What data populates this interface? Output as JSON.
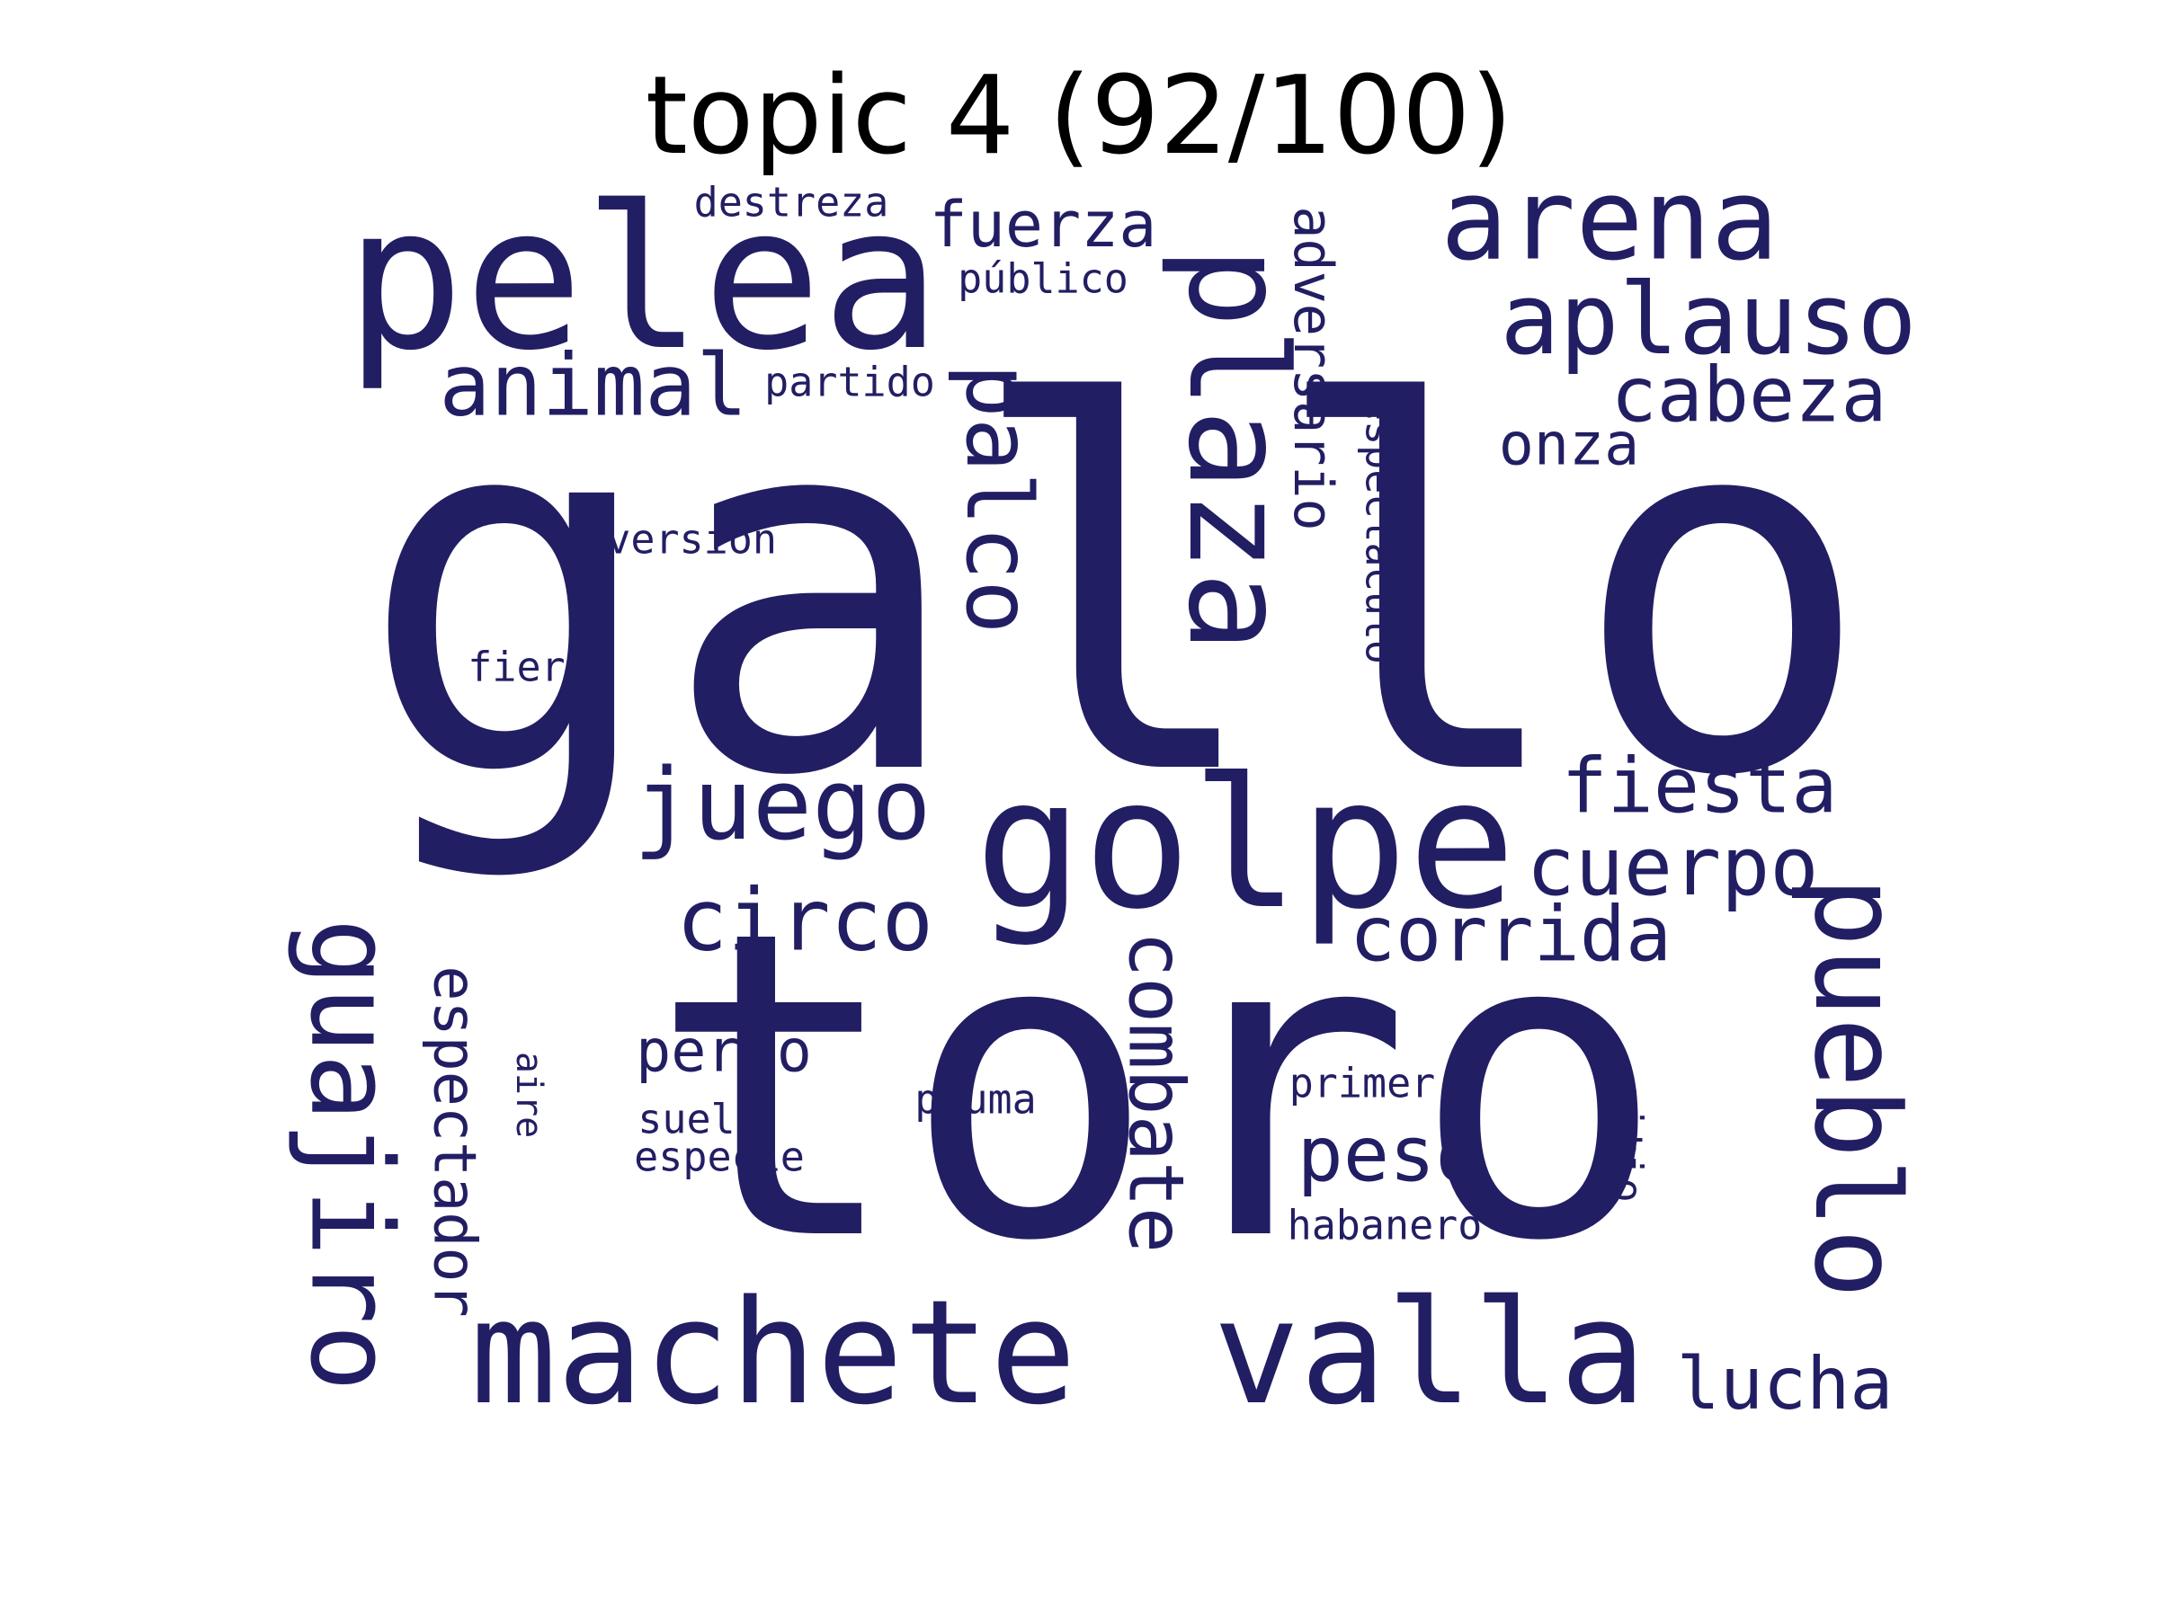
{
  "title": "topic 4 (92/100)",
  "text_color": "#221e63",
  "words": {
    "gallo": "gallo",
    "toro": "toro",
    "pelea": "pelea",
    "plaza": "plaza",
    "golpe": "golpe",
    "machete": "machete",
    "valla": "valla",
    "arena": "arena",
    "aplauso": "aplauso",
    "pueblo": "pueblo",
    "guajiro": "guajiro",
    "juego": "juego",
    "palco": "palco",
    "animal": "animal",
    "circo": "circo",
    "combate": "combate",
    "cuerpo": "cuerpo",
    "fiesta": "fiesta",
    "corrida": "corrida",
    "cabeza": "cabeza",
    "peso": "peso",
    "lucha": "lucha",
    "fuerza": "fuerza",
    "espectador": "espectador",
    "adversario": "adversario",
    "perro": "perro",
    "onza": "onza",
    "destreza": "destreza",
    "publico": "público",
    "partido": "partido",
    "diversion": "diversión",
    "espectaculo": "espectáculo",
    "fiera": "fiera",
    "pluma": "pluma",
    "suelo": "suelo",
    "especie": "especie",
    "primer": "primer",
    "habanero": "habanero",
    "sitio": "sitio",
    "aire": "aire"
  }
}
